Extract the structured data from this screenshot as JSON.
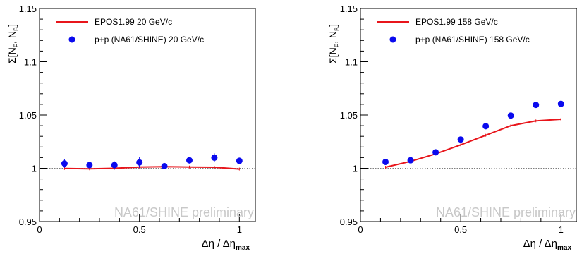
{
  "chart_data": [
    {
      "type": "scatter",
      "panel": "left",
      "xlim": [
        0,
        1.08
      ],
      "ylim": [
        0.95,
        1.15
      ],
      "xticks": [
        "0",
        "0.5",
        "1"
      ],
      "yticks": [
        "0.95",
        "1",
        "1.05",
        "1.1",
        "1.15"
      ],
      "ylabel": "Σ[N_F, N_B]",
      "xlabel": "Δη / Δη_max",
      "watermark": "NA61/SHINE preliminary",
      "reference_line": 1.0,
      "legend_placement": "top-left",
      "series": [
        {
          "name": "EPOS1.99 20 GeV/c",
          "kind": "line",
          "color": "#e8151b",
          "x": [
            0.125,
            0.25,
            0.375,
            0.5,
            0.625,
            0.75,
            0.875,
            1.0
          ],
          "y": [
            0.9998,
            0.9995,
            1.0,
            1.0012,
            1.0015,
            1.0012,
            1.001,
            0.9993
          ]
        },
        {
          "name": "p+p (NA61/SHINE) 20 GeV/c",
          "kind": "points",
          "color": "#0a0aee",
          "x": [
            0.125,
            0.25,
            0.375,
            0.5,
            0.625,
            0.75,
            0.875,
            1.0
          ],
          "y": [
            1.0045,
            1.003,
            1.003,
            1.0055,
            1.002,
            1.0075,
            1.01,
            1.007
          ],
          "err": [
            0.004,
            0.003,
            0.0035,
            0.005,
            0.003,
            0.003,
            0.004,
            0.003
          ]
        }
      ]
    },
    {
      "type": "scatter",
      "panel": "right",
      "xlim": [
        0,
        1.08
      ],
      "ylim": [
        0.95,
        1.15
      ],
      "xticks": [
        "0",
        "0.5",
        "1"
      ],
      "yticks": [
        "0.95",
        "1",
        "1.05",
        "1.1",
        "1.15"
      ],
      "ylabel": "Σ[N_F, N_B]",
      "xlabel": "Δη / Δη_max",
      "watermark": "NA61/SHINE preliminary",
      "reference_line": 1.0,
      "legend_placement": "top-left",
      "series": [
        {
          "name": "EPOS1.99 158 GeV/c",
          "kind": "line",
          "color": "#e8151b",
          "x": [
            0.125,
            0.25,
            0.375,
            0.5,
            0.625,
            0.75,
            0.875,
            1.0
          ],
          "y": [
            1.001,
            1.0065,
            1.0135,
            1.022,
            1.031,
            1.04,
            1.0445,
            1.046
          ]
        },
        {
          "name": "p+p (NA61/SHINE) 158 GeV/c",
          "kind": "points",
          "color": "#0a0aee",
          "x": [
            0.125,
            0.25,
            0.375,
            0.5,
            0.625,
            0.75,
            0.875,
            1.0
          ],
          "y": [
            1.006,
            1.0075,
            1.015,
            1.027,
            1.0395,
            1.0495,
            1.0595,
            1.0605
          ],
          "err": [
            0.0008,
            0.0008,
            0.0008,
            0.0008,
            0.0008,
            0.0008,
            0.0008,
            0.0008
          ]
        }
      ]
    }
  ]
}
